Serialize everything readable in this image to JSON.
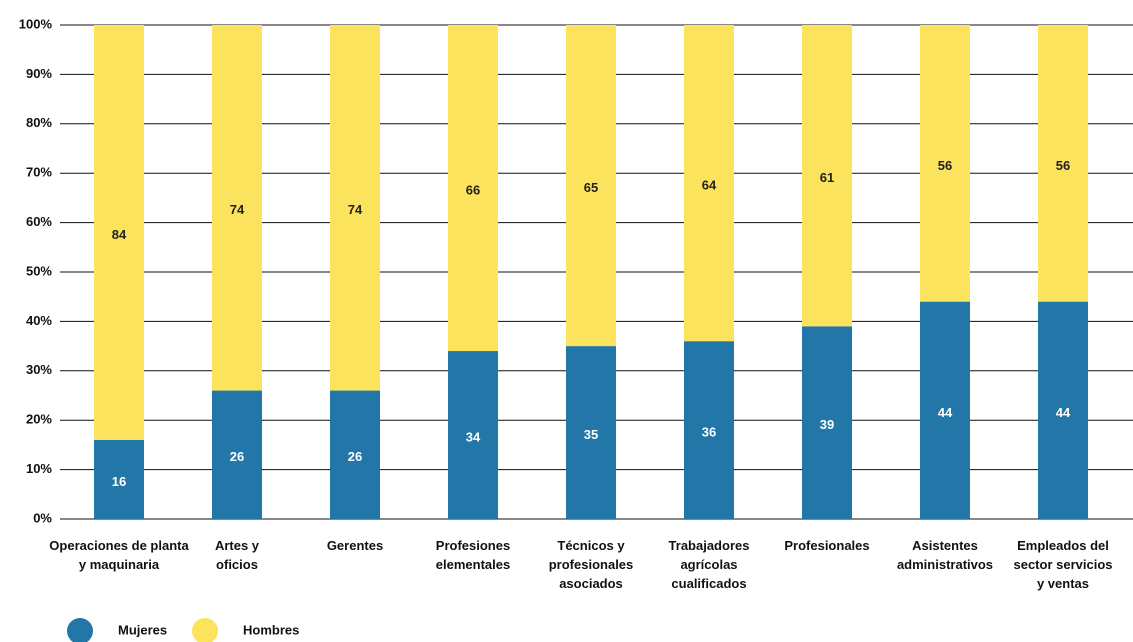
{
  "chart_data": {
    "type": "bar",
    "stacked": true,
    "categories": [
      [
        "Operaciones de planta",
        "y maquinaria"
      ],
      [
        "Artes y",
        "oficios"
      ],
      [
        "Gerentes"
      ],
      [
        "Profesiones",
        "elementales"
      ],
      [
        "Técnicos y",
        "profesionales",
        "asociados"
      ],
      [
        "Trabajadores",
        "agrícolas",
        "cualificados"
      ],
      [
        "Profesionales"
      ],
      [
        "Asistentes",
        "administrativos"
      ],
      [
        "Empleados del",
        "sector servicios",
        "y ventas"
      ]
    ],
    "series": [
      {
        "name": "Mujeres",
        "color": "#2277a8",
        "values": [
          16,
          26,
          26,
          34,
          35,
          36,
          39,
          44,
          44
        ]
      },
      {
        "name": "Hombres",
        "color": "#fbe35e",
        "values": [
          84,
          74,
          74,
          66,
          65,
          64,
          61,
          56,
          56
        ]
      }
    ],
    "ylim": [
      0,
      100
    ],
    "yticks": [
      {
        "value": 0,
        "label": "0%"
      },
      {
        "value": 10,
        "label": "10%"
      },
      {
        "value": 20,
        "label": "20%"
      },
      {
        "value": 30,
        "label": "30%"
      },
      {
        "value": 40,
        "label": "40%"
      },
      {
        "value": 50,
        "label": "50%"
      },
      {
        "value": 60,
        "label": "60%"
      },
      {
        "value": 70,
        "label": "70%"
      },
      {
        "value": 80,
        "label": "80%"
      },
      {
        "value": 90,
        "label": "90%"
      },
      {
        "value": 100,
        "label": "100%"
      }
    ],
    "grid": true,
    "legend": "bottom-left"
  }
}
